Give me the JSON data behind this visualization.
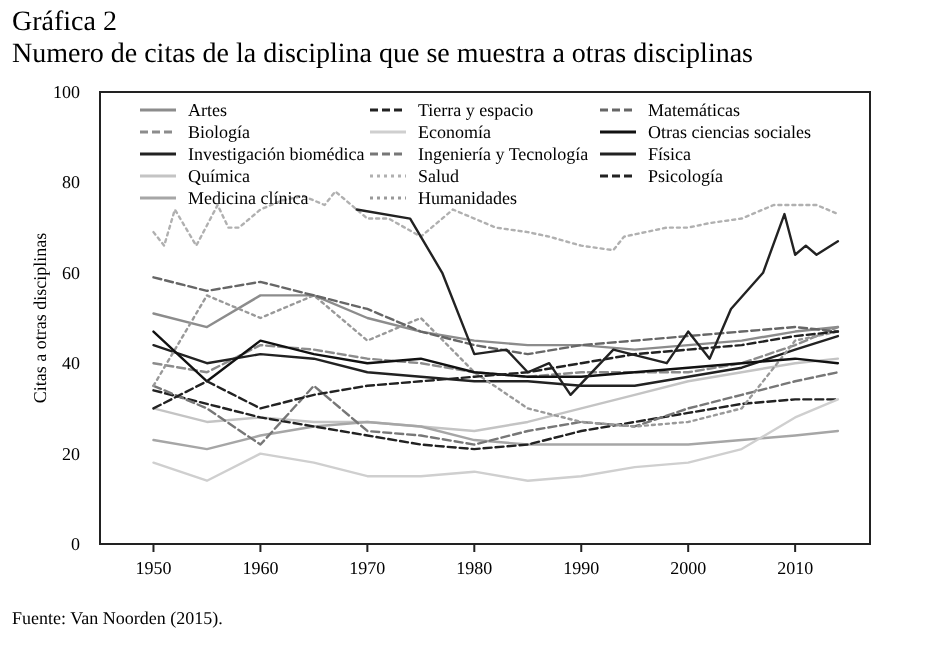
{
  "chart_data": {
    "type": "line",
    "title": "Gráfica 2",
    "subtitle": "Numero de citas de la disciplina que se muestra a otras disciplinas",
    "ylabel": "Citas a otras disciplinas",
    "annotations": [
      "Fuente: Van Noorden (2015)."
    ],
    "xlim": [
      1945,
      2017
    ],
    "xticks": [
      1950,
      1960,
      1970,
      1980,
      1990,
      2000,
      2010
    ],
    "ylim": [
      0,
      100
    ],
    "yticks": [
      0,
      20,
      40,
      60,
      80,
      100
    ],
    "grid": false,
    "legend": "top",
    "x": [
      1950,
      1955,
      1960,
      1965,
      1970,
      1975,
      1980,
      1985,
      1990,
      1995,
      2000,
      2005,
      2010,
      2014
    ],
    "series": [
      {
        "name": "Artes",
        "color": "#8c8c8c",
        "line_style": "solid",
        "values": [
          51,
          48,
          55,
          55,
          50,
          47,
          45,
          44,
          44,
          43,
          44,
          45,
          47,
          48
        ]
      },
      {
        "name": "Biología",
        "color": "#8c8c8c",
        "line_style": "dashed",
        "values": [
          40,
          38,
          44,
          43,
          41,
          40,
          38,
          37,
          38,
          38,
          38,
          40,
          44,
          48
        ]
      },
      {
        "name": "Investigación biomédica",
        "color": "#222222",
        "line_style": "solid",
        "values": [
          44,
          40,
          42,
          41,
          38,
          37,
          36,
          36,
          35,
          35,
          37,
          39,
          43,
          46
        ]
      },
      {
        "name": "Química",
        "color": "#c4c4c4",
        "line_style": "solid",
        "values": [
          30,
          27,
          28,
          27,
          27,
          26,
          25,
          27,
          30,
          33,
          36,
          38,
          40,
          41
        ]
      },
      {
        "name": "Medicina clínica",
        "color": "#a6a6a6",
        "line_style": "solid",
        "values": [
          23,
          21,
          24,
          26,
          27,
          26,
          23,
          22,
          22,
          22,
          22,
          23,
          24,
          25
        ]
      },
      {
        "name": "Tierra y espacio",
        "color": "#222222",
        "line_style": "dashed",
        "values": [
          34,
          31,
          28,
          26,
          24,
          22,
          21,
          22,
          25,
          27,
          29,
          31,
          32,
          32
        ]
      },
      {
        "name": "Economía",
        "color": "#cfcfcf",
        "line_style": "solid",
        "values": [
          18,
          14,
          20,
          18,
          15,
          15,
          16,
          14,
          15,
          17,
          18,
          21,
          28,
          32
        ]
      },
      {
        "name": "Ingeniería y Tecnología",
        "color": "#777777",
        "line_style": "dashed",
        "values": [
          35,
          30,
          22,
          35,
          25,
          24,
          22,
          25,
          27,
          26,
          30,
          33,
          36,
          38
        ]
      },
      {
        "name": "Salud",
        "color": "#b0b0b0",
        "line_style": "dotted",
        "x": [
          1950,
          1951,
          1952,
          1954,
          1956,
          1957,
          1958,
          1960,
          1962,
          1964,
          1966,
          1967,
          1970,
          1972,
          1975,
          1976,
          1978,
          1980,
          1982,
          1985,
          1987,
          1990,
          1993,
          1994,
          1998,
          2000,
          2002,
          2005,
          2008,
          2012,
          2014
        ],
        "values": [
          69,
          66,
          74,
          66,
          75,
          70,
          70,
          74,
          76,
          77,
          75,
          78,
          72,
          72,
          68,
          70,
          74,
          72,
          70,
          69,
          68,
          66,
          65,
          68,
          70,
          70,
          71,
          72,
          75,
          75,
          73
        ]
      },
      {
        "name": "Humanidades",
        "color": "#999999",
        "line_style": "dotted",
        "values": [
          35,
          55,
          50,
          55,
          45,
          50,
          38,
          30,
          27,
          26,
          27,
          30,
          45,
          47
        ]
      },
      {
        "name": "Matemáticas",
        "color": "#666666",
        "line_style": "dashed",
        "values": [
          59,
          56,
          58,
          55,
          52,
          47,
          44,
          42,
          44,
          45,
          46,
          47,
          48,
          47
        ]
      },
      {
        "name": "Otras ciencias sociales",
        "color": "#111111",
        "line_style": "solid",
        "values": [
          47,
          36,
          45,
          42,
          40,
          41,
          38,
          37,
          37,
          38,
          39,
          40,
          41,
          40
        ]
      },
      {
        "name": "Física",
        "color": "#222222",
        "line_style": "solid",
        "x": [
          1969,
          1974,
          1977,
          1980,
          1983,
          1985,
          1987,
          1989,
          1993,
          1998,
          2000,
          2002,
          2004,
          2007,
          2009,
          2010,
          2011,
          2012,
          2014
        ],
        "values": [
          74,
          72,
          60,
          42,
          43,
          38,
          40,
          33,
          43,
          40,
          47,
          41,
          52,
          60,
          73,
          64,
          66,
          64,
          67
        ]
      },
      {
        "name": "Psicología",
        "color": "#222222",
        "line_style": "dashed",
        "values": [
          30,
          36,
          30,
          33,
          35,
          36,
          37,
          38,
          40,
          42,
          43,
          44,
          46,
          47
        ]
      }
    ]
  }
}
